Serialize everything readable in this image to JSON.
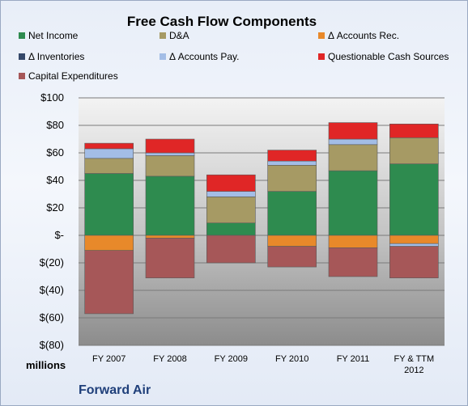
{
  "chart_data": {
    "type": "bar",
    "stacked": true,
    "title": "Free Cash Flow Components",
    "categories": [
      "FY 2007",
      "FY 2008",
      "FY 2009",
      "FY 2010",
      "FY 2011",
      "FY & TTM 2012"
    ],
    "series": [
      {
        "name": "Net Income",
        "color": "#2e8b4f",
        "values": [
          45,
          43,
          9,
          32,
          47,
          52
        ]
      },
      {
        "name": "D&A",
        "color": "#a69a64",
        "values": [
          11,
          15,
          19,
          19,
          19,
          19
        ]
      },
      {
        "name": "Δ Accounts Rec.",
        "color": "#e8892a",
        "values": [
          -11,
          -2,
          0,
          -8,
          -9,
          -6
        ]
      },
      {
        "name": "Δ Inventories",
        "color": "#35486a",
        "values": [
          0,
          0,
          0,
          0,
          0,
          0
        ]
      },
      {
        "name": "Δ Accounts Pay.",
        "color": "#a3bde6",
        "values": [
          7,
          2,
          4,
          3,
          4,
          -2
        ]
      },
      {
        "name": "Questionable Cash Sources",
        "color": "#e02626",
        "values": [
          4,
          10,
          12,
          8,
          12,
          10
        ]
      },
      {
        "name": "Capital Expenditures",
        "color": "#a65758",
        "values": [
          -46,
          -29,
          -20,
          -15,
          -21,
          -23
        ]
      }
    ],
    "ylim": [
      -80,
      100
    ],
    "yticks": [
      100,
      80,
      60,
      40,
      20,
      0,
      -20,
      -40,
      -60,
      -80
    ],
    "ytick_labels": [
      "$100",
      "$80",
      "$60",
      "$40",
      "$20",
      "$-",
      "$(20)",
      "$(40)",
      "$(60)",
      "$(80)"
    ],
    "grid": true,
    "legend_position": "top"
  },
  "unit_label": "millions",
  "company": "Forward Air"
}
